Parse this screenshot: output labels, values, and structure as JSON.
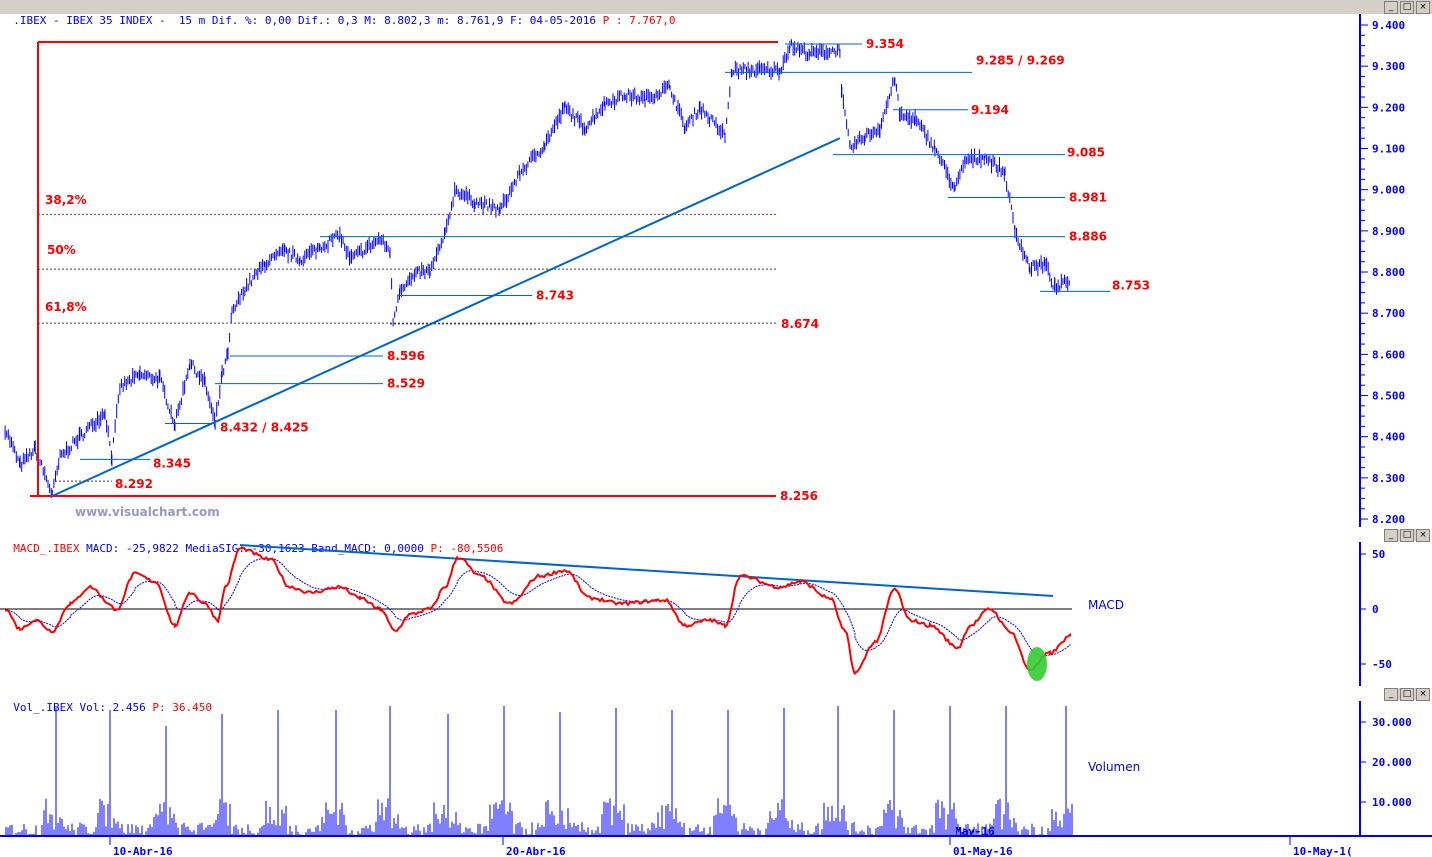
{
  "header": {
    "symbol_title": ".IBEX - IBEX 35 INDEX -  15 m Dif. %: 0,00 Dif.: 0,3 M: 8.802,3 m: 8.761,9 F: 04-05-2016",
    "price_readout": "P : 7.767,0"
  },
  "macd_header": {
    "name": "MACD_.IBEX",
    "values": "MACD: -25,9822 MediaSIG: -30,1623 Band_MACD: 0,0000",
    "price_readout": "P: -80,5506"
  },
  "volume_header": {
    "name": "Vol_.IBEX",
    "values": "Vol: 2.456",
    "price_readout": "P: 36.450"
  },
  "window_buttons": {
    "minimize": "_",
    "maximize": "□",
    "close": "×"
  },
  "watermark": "www.visualchart.com",
  "colors": {
    "price": "#0000ff",
    "levels": "#0066cc",
    "annotation": "#ff0000",
    "macd": "#ff0000",
    "signal": "#0000ff",
    "highlight": "#33cc33",
    "axis": "#0000ff"
  },
  "chart_data": [
    {
      "type": "line",
      "panel": "price",
      "interval": "15 m",
      "y_ticks": [
        "9.400",
        "9.300",
        "9.200",
        "9.100",
        "9.000",
        "8.900",
        "8.800",
        "8.700",
        "8.600",
        "8.500",
        "8.400",
        "8.300",
        "8.200"
      ],
      "ylim": [
        8.2,
        9.4
      ],
      "x_ticks": [
        "10-Abr-16",
        "20-Abr-16",
        "01-May-16",
        "10-May-1("
      ],
      "series": {
        "x": [
          "2016-04-07 08:24",
          "2016-04-07 17:30",
          "2016-04-08 02:40",
          "2016-04-08 13:00",
          "2016-04-08 17:45",
          "2016-04-09 05:45",
          "2016-04-09 21:00",
          "2016-04-10 01:10",
          "2016-04-10 06:00",
          "2016-04-10 18:10",
          "2016-04-11 06:15",
          "2016-04-11 15:25",
          "2016-04-12 00:25",
          "2016-04-12 09:35",
          "2016-04-12 15:40",
          "2016-04-12 19:55",
          "2016-04-12 23:30",
          "2016-04-13 01:55",
          "2016-04-13 09:50",
          "2016-04-13 21:55",
          "2016-04-14 10:00",
          "2016-04-14 19:10",
          "2016-04-15 07:15",
          "2016-04-15 19:20",
          "2016-04-16 01:25",
          "2016-04-16 19:40",
          "2016-04-17 01:40",
          "2016-04-17 03:35",
          "2016-04-17 07:45",
          "2016-04-17 19:55",
          "2016-04-18 02:00",
          "2016-04-18 11:05",
          "2016-04-18 17:05",
          "2016-04-19 05:15",
          "2016-04-19 20:25",
          "2016-04-20 08:25",
          "2016-04-20 23:35",
          "2016-04-21 11:45",
          "2016-04-21 23:50",
          "2016-04-22 12:00",
          "2016-04-23 00:15",
          "2016-04-23 12:15",
          "2016-04-24 03:25",
          "2016-04-24 12:30",
          "2016-04-24 21:35",
          "2016-04-25 12:45",
          "2016-04-25 17:00",
          "2016-04-26 09:50",
          "2016-04-26 22:05",
          "2016-04-27 04:05",
          "2016-04-27 16:20",
          "2016-04-28 10:20",
          "2016-04-28 11:30",
          "2016-04-28 16:30",
          "2016-04-29 01:40",
          "2016-04-29 10:35",
          "2016-04-29 19:40",
          "2016-04-29 22:50",
          "2016-04-30 07:55",
          "2016-04-30 19:55",
          "2016-05-01 08:10",
          "2016-05-01 14:10",
          "2016-05-02 02:20",
          "2016-05-02 14:25",
          "2016-05-02 20:25",
          "2016-05-03 05:30",
          "2016-05-03 14:40",
          "2016-05-03 20:40",
          "2016-05-04 05:50"
        ],
        "values": [
          8.42,
          8.33,
          8.37,
          8.26,
          8.35,
          8.4,
          8.46,
          8.35,
          8.52,
          8.55,
          8.54,
          8.43,
          8.58,
          8.53,
          8.43,
          8.55,
          8.6,
          8.7,
          8.76,
          8.82,
          8.85,
          8.83,
          8.86,
          8.89,
          8.83,
          8.88,
          8.85,
          8.68,
          8.76,
          8.8,
          8.8,
          8.89,
          9.0,
          8.97,
          8.95,
          9.04,
          9.11,
          9.2,
          9.15,
          9.21,
          9.23,
          9.22,
          9.25,
          9.15,
          9.2,
          9.13,
          9.29,
          9.29,
          9.29,
          9.35,
          9.33,
          9.34,
          9.23,
          9.1,
          9.13,
          9.15,
          9.27,
          9.18,
          9.17,
          9.1,
          9.0,
          9.07,
          9.08,
          9.04,
          8.9,
          8.81,
          8.82,
          8.76,
          8.78
        ]
      },
      "levels": [
        {
          "price": 9.354,
          "label": "9.354"
        },
        {
          "price": 9.285,
          "label": "9.285 / 9.269"
        },
        {
          "price": 9.194,
          "label": "9.194"
        },
        {
          "price": 9.085,
          "label": "9.085"
        },
        {
          "price": 8.981,
          "label": "8.981"
        },
        {
          "price": 8.886,
          "label": "8.886"
        },
        {
          "price": 8.753,
          "label": "8.753"
        },
        {
          "price": 8.743,
          "label": "8.743"
        },
        {
          "price": 8.674,
          "label": "8.674"
        },
        {
          "price": 8.596,
          "label": "8.596"
        },
        {
          "price": 8.529,
          "label": "8.529"
        },
        {
          "price": 8.432,
          "label": "8.432 / 8.425"
        },
        {
          "price": 8.345,
          "label": "8.345"
        },
        {
          "price": 8.292,
          "label": "8.292"
        },
        {
          "price": 8.256,
          "label": "8.256"
        }
      ],
      "fibonacci": [
        {
          "label": "38,2%",
          "price": 8.94
        },
        {
          "label": "50%",
          "price": 8.807
        },
        {
          "label": "61,8%",
          "price": 8.676
        }
      ],
      "trendline": {
        "from": [
          "2016-04-08 13:00",
          8.256
        ],
        "to": [
          "2016-04-28 10:20",
          9.125
        ]
      }
    },
    {
      "type": "line",
      "panel": "macd",
      "label": "MACD",
      "y_ticks": [
        "50",
        "0",
        "-50"
      ],
      "ylim": [
        -70,
        60
      ],
      "series": {
        "x": [
          "2016-04-07 08:24",
          "2016-04-07 17:30",
          "2016-04-08 02:40",
          "2016-04-08 13:00",
          "2016-04-08 23:55",
          "2016-04-09 12:00",
          "2016-04-10 00:00",
          "2016-04-10 03:00",
          "2016-04-10 15:10",
          "2016-04-11 03:15",
          "2016-04-11 15:25",
          "2016-04-12 00:25",
          "2016-04-12 09:35",
          "2016-04-12 17:30",
          "2016-04-12 21:50",
          "2016-04-13 06:55",
          "2016-04-14 01:05",
          "2016-04-14 13:10",
          "2016-04-15 01:20",
          "2016-04-15 19:20",
          "2016-04-16 07:30",
          "2016-04-16 19:40",
          "2016-04-17 04:45",
          "2016-04-17 13:50",
          "2016-04-18 02:00",
          "2016-04-18 11:05",
          "2016-04-18 18:55",
          "2016-04-19 08:15",
          "2016-04-20 02:25",
          "2016-04-20 20:35",
          "2016-04-21 11:45",
          "2016-04-22 02:55",
          "2016-04-22 21:05",
          "2016-04-24 00:20",
          "2016-04-24 12:30",
          "2016-04-25 03:40",
          "2016-04-25 12:45",
          "2016-04-25 21:55",
          "2016-04-26 22:05",
          "2016-04-27 10:15",
          "2016-04-28 04:20",
          "2016-04-28 13:25",
          "2016-04-28 19:30",
          "2016-04-29 07:40",
          "2016-04-29 19:40",
          "2016-04-30 04:45",
          "2016-04-30 16:55",
          "2016-05-01 09:55",
          "2016-05-01 17:10",
          "2016-05-02 05:20",
          "2016-05-02 17:25",
          "2016-05-03 05:30",
          "2016-05-03 17:40",
          "2016-05-04 05:50"
        ],
        "values": [
          0,
          -18,
          -10,
          -20,
          5,
          20,
          5,
          -2,
          32,
          25,
          -15,
          15,
          5,
          -10,
          20,
          55,
          45,
          20,
          15,
          20,
          10,
          0,
          -20,
          -5,
          0,
          20,
          47,
          30,
          5,
          30,
          35,
          10,
          5,
          8,
          -15,
          -10,
          -15,
          30,
          20,
          25,
          10,
          -20,
          -58,
          -30,
          18,
          -10,
          -15,
          -35,
          -15,
          0,
          -20,
          -55,
          -40,
          -25
        ]
      },
      "signal_name": "MediaSIG",
      "divergence_line": true,
      "highlight": "green ellipse at MACD low"
    },
    {
      "type": "bar",
      "panel": "volume",
      "label": "Volumen",
      "y_ticks": [
        "30.000",
        "20.000",
        "10.000"
      ],
      "ylim": [
        0,
        34000
      ],
      "overlay_label": "May-16",
      "session_open_spikes": [
        33500,
        33000,
        29000,
        32000,
        33000,
        33000,
        34000,
        32000,
        34000,
        32500,
        33500,
        33000,
        33000,
        33500,
        34000,
        33000,
        34000,
        34000,
        34000
      ]
    }
  ]
}
